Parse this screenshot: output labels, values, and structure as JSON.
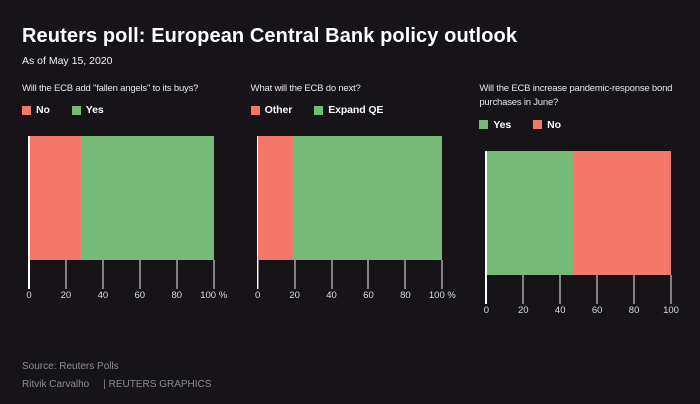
{
  "header": {
    "title": "Reuters poll: European Central Bank policy outlook",
    "subtitle": "As of May 15, 2020"
  },
  "colors": {
    "background": "#171419",
    "negative_red": "#f3786a",
    "positive_green": "#75bb77",
    "axis_white": "#ffffff"
  },
  "chart_data": [
    {
      "type": "bar",
      "orientation": "horizontal",
      "stacked": true,
      "question": "Will the ECB add \"fallen angels\" to its buys?",
      "series": [
        {
          "name": "No",
          "value": 28,
          "color": "#f3786a"
        },
        {
          "name": "Yes",
          "value": 72,
          "color": "#75bb77"
        }
      ],
      "unit": "%",
      "xlim": [
        0,
        100
      ],
      "tick_values": [
        0,
        20,
        40,
        60,
        80,
        100
      ],
      "tick_labels": [
        "0",
        "20",
        "40",
        "60",
        "80",
        "100 %"
      ]
    },
    {
      "type": "bar",
      "orientation": "horizontal",
      "stacked": true,
      "question": "What will the ECB do next?",
      "series": [
        {
          "name": "Other",
          "value": 19,
          "color": "#f3786a"
        },
        {
          "name": "Expand QE",
          "value": 81,
          "color": "#75bb77"
        }
      ],
      "unit": "%",
      "xlim": [
        0,
        100
      ],
      "tick_values": [
        0,
        20,
        40,
        60,
        80,
        100
      ],
      "tick_labels": [
        "0",
        "20",
        "40",
        "60",
        "80",
        "100 %"
      ]
    },
    {
      "type": "bar",
      "orientation": "horizontal",
      "stacked": true,
      "question": "Will the ECB increase pandemic-response bond purchases in June?",
      "series": [
        {
          "name": "Yes",
          "value": 47,
          "color": "#75bb77"
        },
        {
          "name": "No",
          "value": 53,
          "color": "#f3786a"
        }
      ],
      "unit": "%",
      "xlim": [
        0,
        100
      ],
      "tick_values": [
        0,
        20,
        40,
        60,
        80,
        100
      ],
      "tick_labels": [
        "0",
        "20",
        "40",
        "60",
        "80",
        "100"
      ]
    }
  ],
  "footer": {
    "source": "Source: Reuters Polls",
    "byline": "Ritvik Carvalho",
    "credit": "| REUTERS GRAPHICS"
  }
}
